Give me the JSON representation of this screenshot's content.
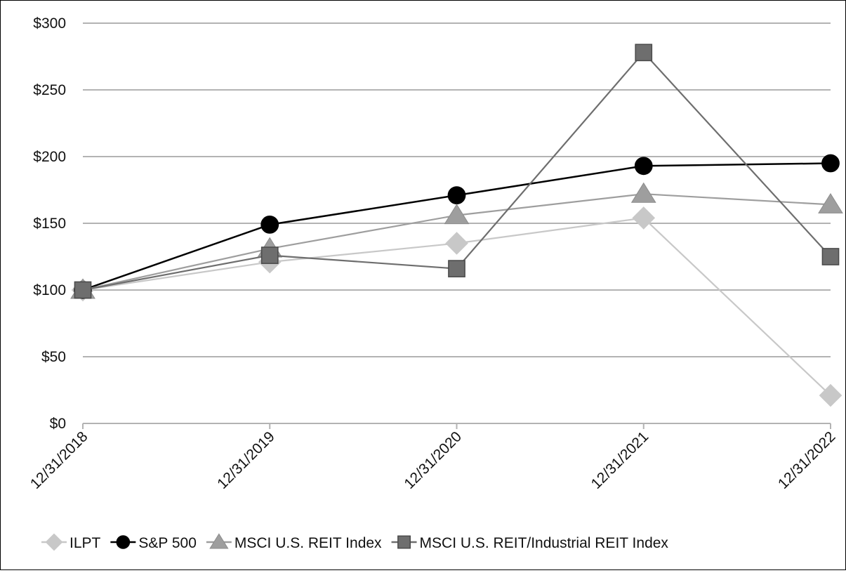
{
  "chart_data": {
    "type": "line",
    "title": "",
    "xlabel": "",
    "ylabel": "",
    "categories": [
      "12/31/2018",
      "12/31/2019",
      "12/31/2020",
      "12/31/2021",
      "12/31/2022"
    ],
    "ylim": [
      0,
      300
    ],
    "yticks": [
      0,
      50,
      100,
      150,
      200,
      250,
      300
    ],
    "ytick_labels": [
      "$0",
      "$50",
      "$100",
      "$150",
      "$200",
      "$250",
      "$300"
    ],
    "grid": "horizontal",
    "legend_position": "bottom",
    "series": [
      {
        "name": "ILPT",
        "values": [
          100,
          121,
          135,
          154,
          21
        ],
        "color": "#c8c8c8",
        "marker": "diamond"
      },
      {
        "name": "S&P 500",
        "values": [
          100,
          149,
          171,
          193,
          195
        ],
        "color": "#000000",
        "marker": "circle"
      },
      {
        "name": "MSCI U.S. REIT Index",
        "values": [
          100,
          131,
          156,
          172,
          164
        ],
        "color": "#9e9e9e",
        "marker": "triangle"
      },
      {
        "name": "MSCI U.S. REIT/Industrial REIT Index",
        "values": [
          100,
          126,
          116,
          278,
          125
        ],
        "color": "#6e6e6e",
        "marker": "square"
      }
    ]
  }
}
